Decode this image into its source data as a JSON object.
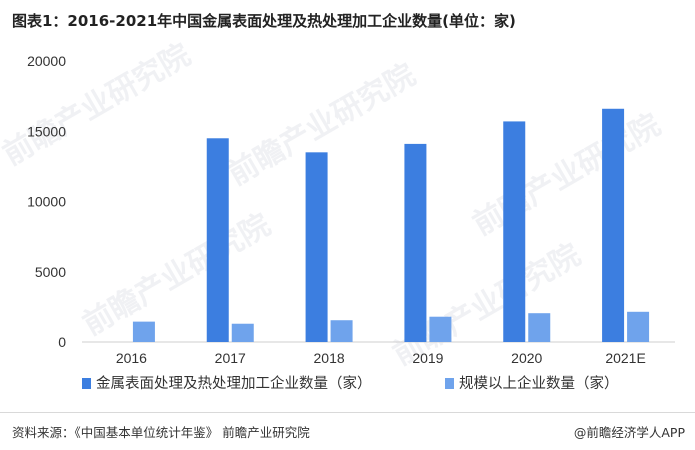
{
  "title": "图表1：2016-2021年中国金属表面处理及热处理加工企业数量(单位：家)",
  "chart_data": {
    "type": "bar",
    "categories": [
      "2016",
      "2017",
      "2018",
      "2019",
      "2020",
      "2021E"
    ],
    "series": [
      {
        "name": "金属表面处理及热处理加工企业数量（家）",
        "color": "#3c7ee0",
        "values": [
          null,
          14500,
          13500,
          14100,
          15700,
          16600
        ]
      },
      {
        "name": "规模以上企业数量（家）",
        "color": "#6fa3ec",
        "values": [
          1450,
          1300,
          1550,
          1800,
          2050,
          2150
        ]
      }
    ],
    "yticks": [
      0,
      5000,
      10000,
      15000,
      20000
    ],
    "ylim": [
      0,
      20000
    ],
    "grid": false,
    "legend": "bottom"
  },
  "footer": {
    "source": "资料来源：《中国基本单位统计年鉴》 前瞻产业研究院",
    "brand": "@前瞻经济学人APP"
  },
  "watermark": "前瞻产业研究院"
}
